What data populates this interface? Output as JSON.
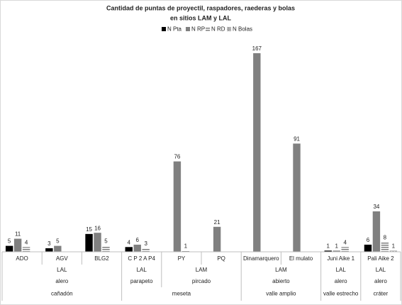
{
  "chart_data": {
    "type": "bar",
    "title": [
      "Cantidad de puntas de proyectil, raspadores, raederas y bolas",
      "en sitios LAM y LAL"
    ],
    "categories": [
      "ADO",
      "AGV",
      "BLG2",
      "C P 2 A P4",
      "PY",
      "PQ",
      "Dinamarquero",
      "El mulato",
      "Juni Aike 1",
      "Pali Aike 2"
    ],
    "category_levels": [
      [
        "LAL",
        null,
        null,
        "LAL",
        "LAM",
        null,
        "LAM",
        null,
        "LAL",
        "LAL"
      ],
      [
        "alero",
        null,
        null,
        "parapeto",
        "pircado",
        null,
        "abierto",
        null,
        "alero",
        "alero"
      ],
      [
        "cañadón",
        null,
        null,
        "meseta",
        null,
        null,
        "valle amplio",
        null,
        "valle estrecho",
        "cráter"
      ]
    ],
    "series": [
      {
        "name": "N Pta",
        "color": "#000000",
        "values": [
          5,
          3,
          15,
          4,
          null,
          null,
          null,
          null,
          1,
          6
        ]
      },
      {
        "name": "N RP",
        "color": "#808080",
        "values": [
          11,
          5,
          16,
          6,
          76,
          21,
          167,
          91,
          1,
          34
        ]
      },
      {
        "name": "N RD",
        "color": "#7f7f7f",
        "pattern": "stripes",
        "values": [
          4,
          null,
          5,
          3,
          1,
          null,
          null,
          null,
          4,
          8
        ]
      },
      {
        "name": "N Bolas",
        "color": "#a6a6a6",
        "pattern": "dots",
        "values": [
          null,
          null,
          null,
          null,
          null,
          null,
          null,
          null,
          null,
          1
        ]
      }
    ],
    "legend": "top",
    "grid": false
  }
}
